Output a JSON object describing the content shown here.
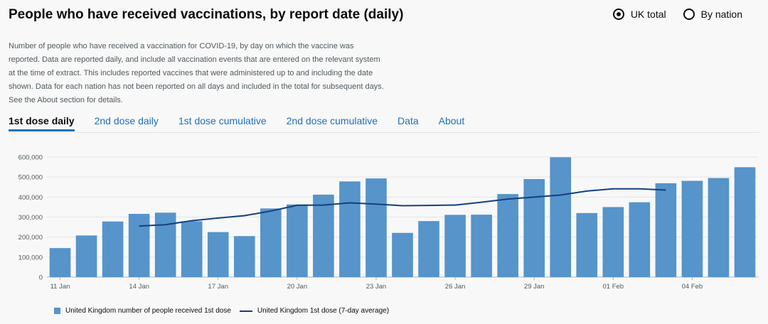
{
  "header": {
    "title": "People who have received vaccinations, by report date (daily)"
  },
  "view_toggle": [
    {
      "label": "UK total",
      "selected": true
    },
    {
      "label": "By nation",
      "selected": false
    }
  ],
  "description": "Number of people who have received a vaccination for COVID-19, by day on which the vaccine was reported. Data are reported daily, and include all vaccination events that are entered on the relevant system at the time of extract. This includes reported vaccines that were administered up to and including the date shown. Data for each nation has not been reported on all days and included in the total for subsequent days. See the About section for details.",
  "tabs": [
    {
      "label": "1st dose daily",
      "active": true
    },
    {
      "label": "2nd dose daily",
      "active": false
    },
    {
      "label": "1st dose cumulative",
      "active": false
    },
    {
      "label": "2nd dose cumulative",
      "active": false
    },
    {
      "label": "Data",
      "active": false
    },
    {
      "label": "About",
      "active": false
    }
  ],
  "colors": {
    "bar": "#5694ca",
    "line": "#12407f",
    "link": "#1d70b8"
  },
  "chart_data": {
    "type": "bar",
    "ylim": [
      0,
      600000
    ],
    "yticks": [
      0,
      100000,
      200000,
      300000,
      400000,
      500000,
      600000
    ],
    "ytick_labels": [
      "0",
      "100,000",
      "200,000",
      "300,000",
      "400,000",
      "500,000",
      "600,000"
    ],
    "categories": [
      "11 Jan",
      "12 Jan",
      "13 Jan",
      "14 Jan",
      "15 Jan",
      "16 Jan",
      "17 Jan",
      "18 Jan",
      "19 Jan",
      "20 Jan",
      "21 Jan",
      "22 Jan",
      "23 Jan",
      "24 Jan",
      "25 Jan",
      "26 Jan",
      "27 Jan",
      "28 Jan",
      "29 Jan",
      "30 Jan",
      "31 Jan",
      "01 Feb",
      "02 Feb",
      "03 Feb",
      "04 Feb",
      "05 Feb",
      "06 Feb"
    ],
    "xtick_labels": [
      {
        "index": 0,
        "label": "11 Jan"
      },
      {
        "index": 3,
        "label": "14 Jan"
      },
      {
        "index": 6,
        "label": "17 Jan"
      },
      {
        "index": 9,
        "label": "20 Jan"
      },
      {
        "index": 12,
        "label": "23 Jan"
      },
      {
        "index": 15,
        "label": "26 Jan"
      },
      {
        "index": 18,
        "label": "29 Jan"
      },
      {
        "index": 21,
        "label": "01 Feb"
      },
      {
        "index": 24,
        "label": "04 Feb"
      }
    ],
    "series": [
      {
        "name": "United Kingdom number of people received 1st dose",
        "type": "bar",
        "values": [
          145000,
          208000,
          278000,
          316000,
          322000,
          279000,
          225000,
          205000,
          343000,
          363000,
          412000,
          478000,
          493000,
          221000,
          280000,
          311000,
          312000,
          415000,
          490000,
          599000,
          320000,
          350000,
          374000,
          469000,
          481000,
          495000,
          549000
        ]
      },
      {
        "name": "United Kingdom 1st dose (7-day average)",
        "type": "line",
        "values": [
          null,
          null,
          null,
          255000,
          262000,
          282000,
          295000,
          307000,
          330000,
          359000,
          360000,
          371000,
          365000,
          357000,
          358000,
          360000,
          374000,
          390000,
          400000,
          410000,
          430000,
          441000,
          441000,
          435000,
          null,
          null,
          null
        ]
      }
    ]
  }
}
